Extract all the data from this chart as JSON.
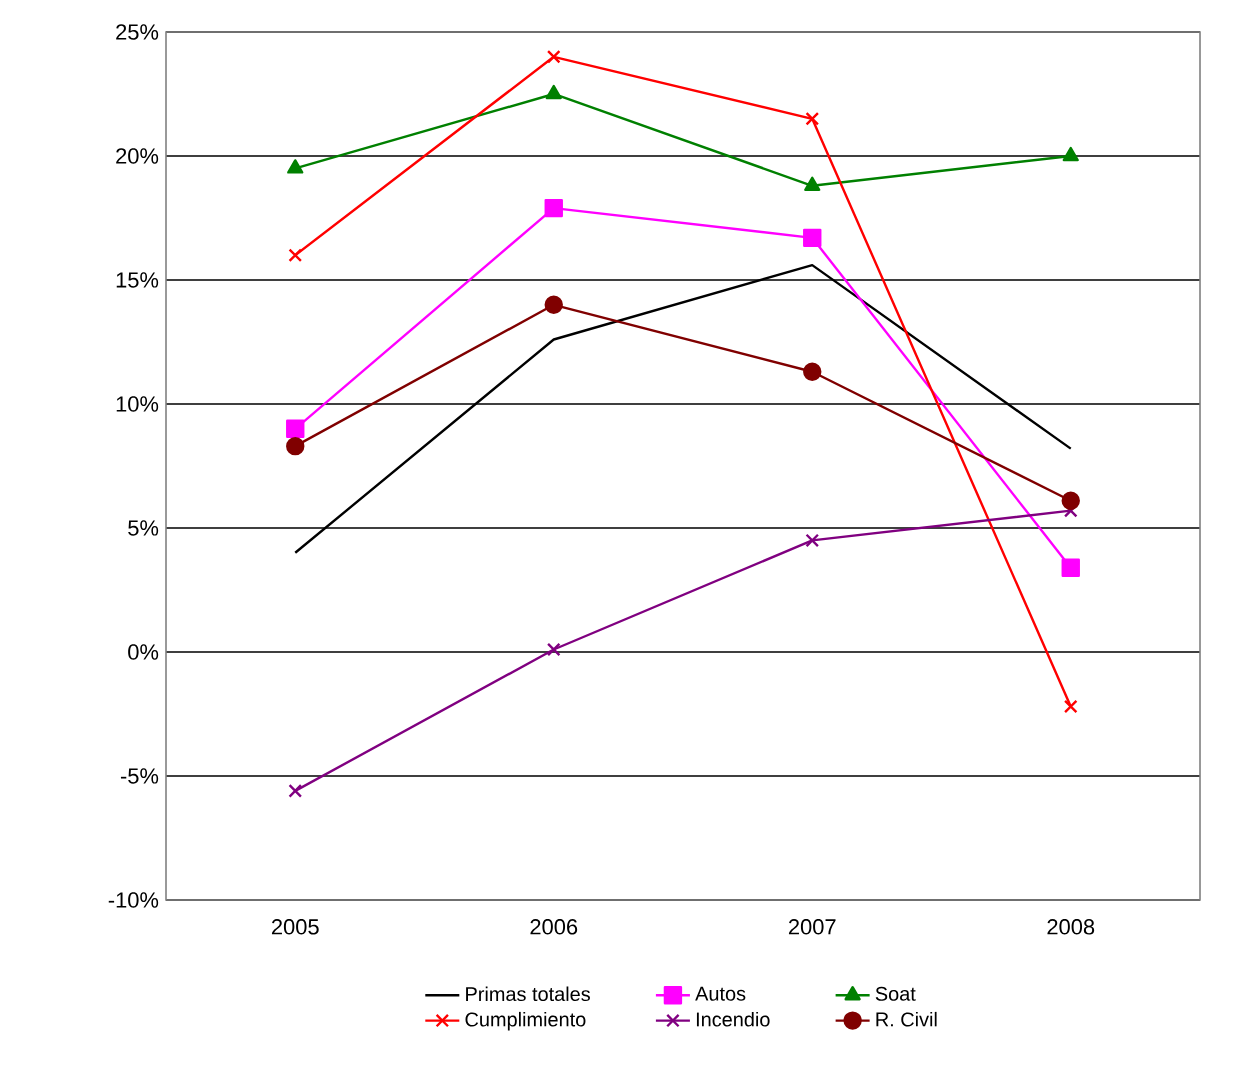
{
  "chart_data": {
    "type": "line",
    "categories": [
      "2005",
      "2006",
      "2007",
      "2008"
    ],
    "series": [
      {
        "name": "Primas totales",
        "color": "#000000",
        "marker": "none",
        "values": [
          4.0,
          12.6,
          15.6,
          8.2
        ]
      },
      {
        "name": "Autos",
        "color": "#ff00ff",
        "marker": "square",
        "values": [
          9.0,
          17.9,
          16.7,
          3.4
        ]
      },
      {
        "name": "Soat",
        "color": "#008000",
        "marker": "triangle",
        "values": [
          19.5,
          22.5,
          18.8,
          20.0
        ]
      },
      {
        "name": "Cumplimiento",
        "color": "#ff0000",
        "marker": "cross",
        "values": [
          16.0,
          24.0,
          21.5,
          -2.2
        ]
      },
      {
        "name": "Incendio",
        "color": "#800080",
        "marker": "cross",
        "values": [
          -5.6,
          0.1,
          4.5,
          5.7
        ]
      },
      {
        "name": "R. Civil",
        "color": "#800000",
        "marker": "circle",
        "values": [
          8.3,
          14.0,
          11.3,
          6.1
        ]
      }
    ],
    "ylim": [
      -10,
      25
    ],
    "yticks": [
      {
        "value": -10,
        "label": "-10%"
      },
      {
        "value": -5,
        "label": "-5%"
      },
      {
        "value": 0,
        "label": "0%"
      },
      {
        "value": 5,
        "label": "5%"
      },
      {
        "value": 10,
        "label": "10%"
      },
      {
        "value": 15,
        "label": "15%"
      },
      {
        "value": 20,
        "label": "20%"
      },
      {
        "value": 25,
        "label": "25%"
      }
    ],
    "grid": "y",
    "legend": "bottom"
  }
}
